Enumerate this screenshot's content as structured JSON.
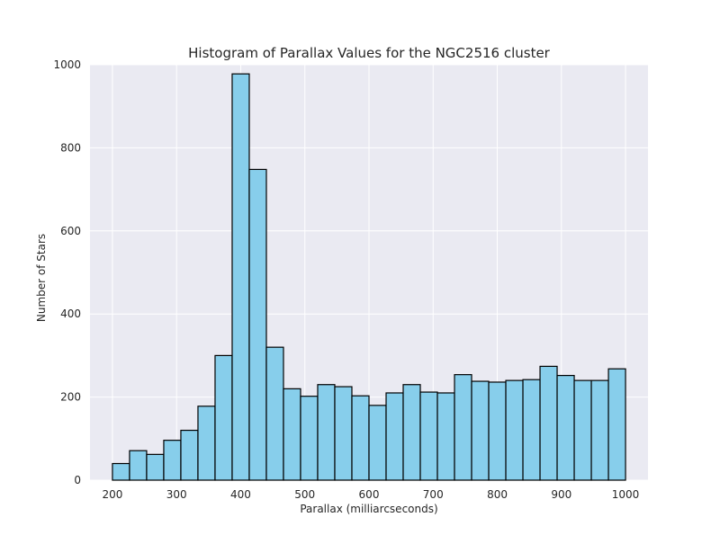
{
  "chart_data": {
    "type": "bar",
    "title": "Histogram of Parallax Values for the NGC2516 cluster",
    "xlabel": "Parallax (milliarcseconds)",
    "ylabel": "Number of Stars",
    "xlim": [
      165,
      1035
    ],
    "ylim": [
      0,
      1000
    ],
    "xticks": [
      200,
      300,
      400,
      500,
      600,
      700,
      800,
      900,
      1000
    ],
    "yticks": [
      0,
      200,
      400,
      600,
      800,
      1000
    ],
    "grid": true,
    "legend": "none",
    "bin_edges": [
      200,
      226.67,
      253.33,
      280,
      306.67,
      333.33,
      360,
      386.67,
      413.33,
      440,
      466.67,
      493.33,
      520,
      546.67,
      573.33,
      600,
      626.67,
      653.33,
      680,
      706.67,
      733.33,
      760,
      786.67,
      813.33,
      840,
      866.67,
      893.33,
      920,
      946.67,
      973.33,
      1000
    ],
    "values": [
      40,
      71,
      62,
      96,
      120,
      178,
      300,
      978,
      748,
      320,
      220,
      202,
      230,
      225,
      203,
      180,
      210,
      230,
      212,
      210,
      254,
      238,
      236,
      240,
      242,
      274,
      252,
      240,
      240,
      268
    ],
    "colors": {
      "bar_fill": "#87ceeb",
      "bar_edge": "#000000",
      "plot_background": "#eaeaf2",
      "grid": "#ffffff"
    }
  }
}
